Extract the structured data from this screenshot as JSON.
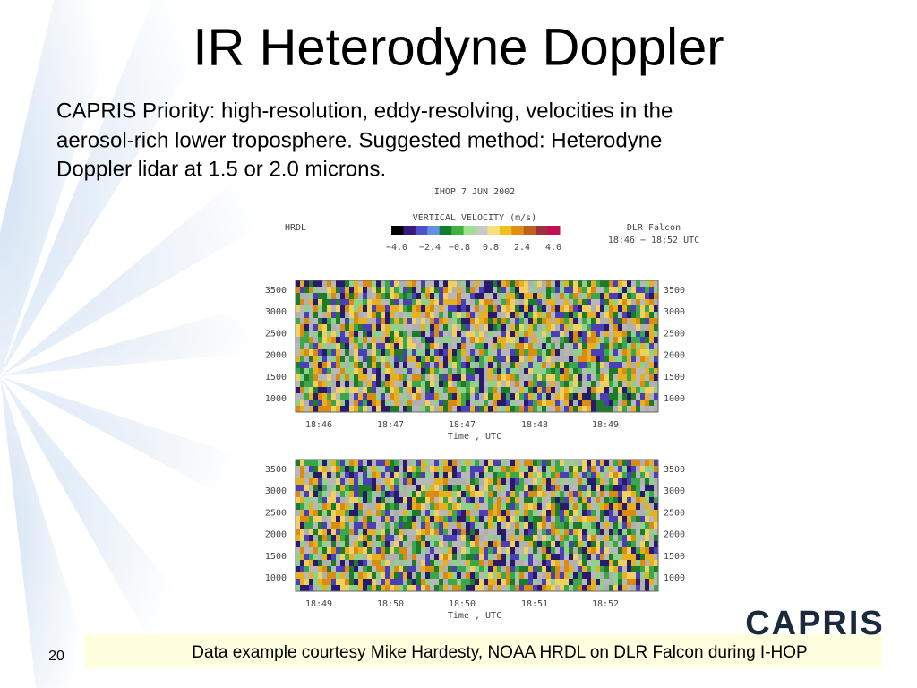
{
  "title": "IR Heterodyne Doppler",
  "body": [
    "CAPRIS Priority: high-resolution, eddy-resolving, velocities in the",
    "aerosol-rich lower troposphere.   Suggested method: Heterodyne",
    "Doppler lidar at 1.5 or 2.0 microns."
  ],
  "figure": {
    "header": "IHOP   7 JUN 2002",
    "colorbar_title": "VERTICAL VELOCITY (m/s)",
    "colorbar_labels": [
      "−4.0",
      "−2.4",
      "−0.8",
      "0.8",
      "2.4",
      "4.0"
    ],
    "instrument": "HRDL",
    "platform": "DLR Falcon",
    "time_range": "18:46 − 18:52 UTC",
    "panels": [
      {
        "yticks": [
          "3500",
          "3000",
          "2500",
          "2000",
          "1500",
          "1000"
        ],
        "xticks": [
          "18:46",
          "18:47",
          "18:47",
          "18:48",
          "18:49"
        ],
        "xlabel": "Time , UTC"
      },
      {
        "yticks": [
          "3500",
          "3000",
          "2500",
          "2000",
          "1500",
          "1000"
        ],
        "xticks": [
          "18:49",
          "18:50",
          "18:50",
          "18:51",
          "18:52"
        ],
        "xlabel": "Time , UTC"
      }
    ]
  },
  "footer": {
    "caption": "Data example courtesy Mike Hardesty, NOAA HRDL on DLR Falcon during I-HOP",
    "slide_number": "20",
    "logo": "CAPRIS"
  }
}
